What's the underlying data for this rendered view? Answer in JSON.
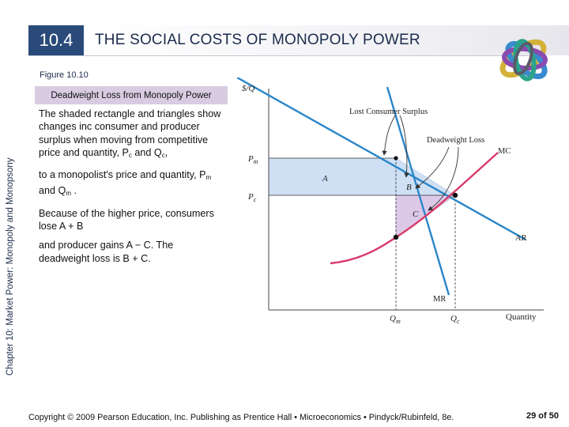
{
  "header": {
    "section_number": "10.4",
    "title": "THE SOCIAL COSTS OF MONOPOLY POWER"
  },
  "figure": {
    "label": "Figure 10.10",
    "caption": "Deadweight Loss from Monopoly Power"
  },
  "sidebar": {
    "chapter_label": "Chapter 10: Market Power: Monopoly and Monopsony"
  },
  "body": {
    "para1_text": "The shaded rectangle and triangles show changes inc consumer and producer surplus when moving from competitive price and quantity, P",
    "para1_sub1": "c",
    "para1_mid": " and Q",
    "para1_sub2": "c",
    "para1_end": ",",
    "para2_text": "to a monopolist's price and quantity, P",
    "para2_sub1": "m",
    "para2_mid": " and Q",
    "para2_sub2": "m",
    "para2_end": " .",
    "para3": "Because of the higher price, consumers lose A + B",
    "para4": "and producer gains A − C. The deadweight loss is B + C."
  },
  "graph": {
    "y_axis_label": "$/Q",
    "x_axis_label": "Quantity",
    "price_monopoly": "P",
    "price_monopoly_sub": "m",
    "price_competitive": "P",
    "price_competitive_sub": "c",
    "qty_monopoly": "Q",
    "qty_monopoly_sub": "m",
    "qty_competitive": "Q",
    "qty_competitive_sub": "c",
    "area_a": "A",
    "area_b": "B",
    "area_c": "C",
    "lost_consumer_surplus": "Lost Consumer Surplus",
    "deadweight_loss": "Deadweight Loss",
    "mc_label": "MC",
    "ar_label": "AR",
    "mr_label": "MR",
    "colors": {
      "demand_line": "#2a86c8",
      "mc_curve": "#d93a6a",
      "shade_a": "#cfe0f4",
      "shade_b": "#cfe0f4",
      "shade_c": "#dcc9e8"
    }
  },
  "footer": {
    "copyright": "Copyright © 2009 Pearson Education, Inc. Publishing as Prentice Hall • Microeconomics • Pindyck/Rubinfeld, 8e.",
    "page": "29 of 50"
  }
}
